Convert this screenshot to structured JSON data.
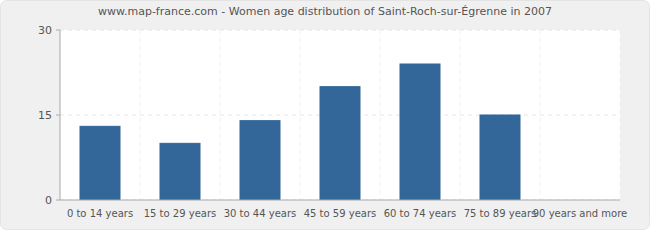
{
  "chart_data": {
    "type": "bar",
    "title": "www.map-france.com - Women age distribution of Saint-Roch-sur-Égrenne in 2007",
    "categories": [
      "0 to 14 years",
      "15 to 29 years",
      "30 to 44 years",
      "45 to 59 years",
      "60 to 74 years",
      "75 to 89 years",
      "90 years and more"
    ],
    "values": [
      13,
      10,
      14,
      20,
      24,
      15,
      0
    ],
    "color": "#336699",
    "ylim": [
      0,
      30
    ],
    "yticks": [
      0,
      15,
      30
    ],
    "grid": true
  }
}
